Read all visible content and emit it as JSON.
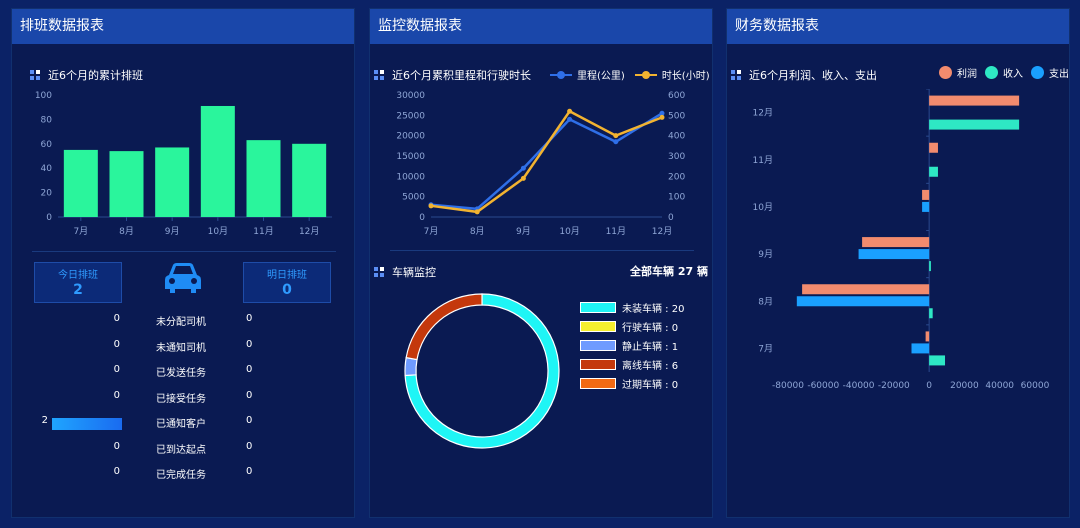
{
  "panels": {
    "schedule": {
      "title": "排班数据报表"
    },
    "monitor": {
      "title": "监控数据报表"
    },
    "finance": {
      "title": "财务数据报表"
    }
  },
  "schedule_chart": {
    "subtitle": "近6个月的累计排班",
    "chart_data": {
      "type": "bar",
      "categories": [
        "7月",
        "8月",
        "9月",
        "10月",
        "11月",
        "12月"
      ],
      "values": [
        55,
        54,
        57,
        91,
        63,
        60
      ],
      "yticks": [
        "0",
        "20",
        "40",
        "60",
        "80",
        "100"
      ],
      "ylim": [
        0,
        100
      ],
      "color": "#2af59c"
    }
  },
  "today": {
    "label": "今日排班",
    "value": "2"
  },
  "tomorrow": {
    "label": "明日排班",
    "value": "0"
  },
  "tasks": [
    {
      "left": "0",
      "fill": 0,
      "name": "未分配司机",
      "right": "0"
    },
    {
      "left": "0",
      "fill": 0,
      "name": "未通知司机",
      "right": "0"
    },
    {
      "left": "0",
      "fill": 0,
      "name": "已发送任务",
      "right": "0"
    },
    {
      "left": "0",
      "fill": 0,
      "name": "已接受任务",
      "right": "0"
    },
    {
      "left": "2",
      "fill": 1,
      "name": "已通知客户",
      "right": "0"
    },
    {
      "left": "0",
      "fill": 0,
      "name": "已到达起点",
      "right": "0"
    },
    {
      "left": "0",
      "fill": 0,
      "name": "已完成任务",
      "right": "0"
    }
  ],
  "monitor_chart": {
    "subtitle": "近6个月累积里程和行驶时长",
    "chart_data": {
      "type": "line",
      "categories": [
        "7月",
        "8月",
        "9月",
        "10月",
        "11月",
        "12月"
      ],
      "series": [
        {
          "name": "里程(公里)",
          "values": [
            3000,
            2000,
            12000,
            24000,
            18500,
            25500
          ],
          "color": "#2f6fe8",
          "axis": "left"
        },
        {
          "name": "时长(小时)",
          "values": [
            55,
            25,
            190,
            520,
            400,
            490
          ],
          "color": "#f2b330",
          "axis": "right"
        }
      ],
      "yticks_left": [
        "0",
        "5000",
        "10000",
        "15000",
        "20000",
        "25000",
        "30000"
      ],
      "yticks_right": [
        "0",
        "100",
        "200",
        "300",
        "400",
        "500",
        "600"
      ],
      "ylim_left": [
        0,
        30000
      ],
      "ylim_right": [
        0,
        600
      ]
    }
  },
  "vehicle": {
    "subtitle": "车辆监控",
    "total_label": "全部车辆",
    "total_value": "27",
    "total_unit": "辆",
    "chart_data": {
      "type": "pie",
      "items": [
        {
          "label": "未装车辆 : 20",
          "value": 20,
          "color": "#1ff5f5"
        },
        {
          "label": "行驶车辆 : 0",
          "value": 0,
          "color": "#f5ef2e"
        },
        {
          "label": "静止车辆 : 1",
          "value": 1,
          "color": "#6f9bff"
        },
        {
          "label": "离线车辆 : 6",
          "value": 6,
          "color": "#c4380c"
        },
        {
          "label": "过期车辆 : 0",
          "value": 0,
          "color": "#f26a14"
        }
      ]
    }
  },
  "finance_chart": {
    "subtitle": "近6个月利润、收入、支出",
    "chart_data": {
      "type": "bar",
      "orientation": "horizontal",
      "categories": [
        "7月",
        "8月",
        "9月",
        "10月",
        "11月",
        "12月"
      ],
      "series": [
        {
          "name": "利润",
          "values": [
            -2000,
            -72000,
            -38000,
            -4000,
            5000,
            51000
          ],
          "color": "#f28b6e"
        },
        {
          "name": "收入",
          "values": [
            9000,
            2000,
            1000,
            0,
            5000,
            51000
          ],
          "color": "#2ee8c4"
        },
        {
          "name": "支出",
          "values": [
            -10000,
            -75000,
            -40000,
            -4000,
            0,
            0
          ],
          "color": "#1aa0ff"
        }
      ],
      "xticks": [
        "-80000",
        "-60000",
        "-40000",
        "-20000",
        "0",
        "20000",
        "40000",
        "60000"
      ],
      "xlim": [
        -80000,
        60000
      ]
    }
  }
}
